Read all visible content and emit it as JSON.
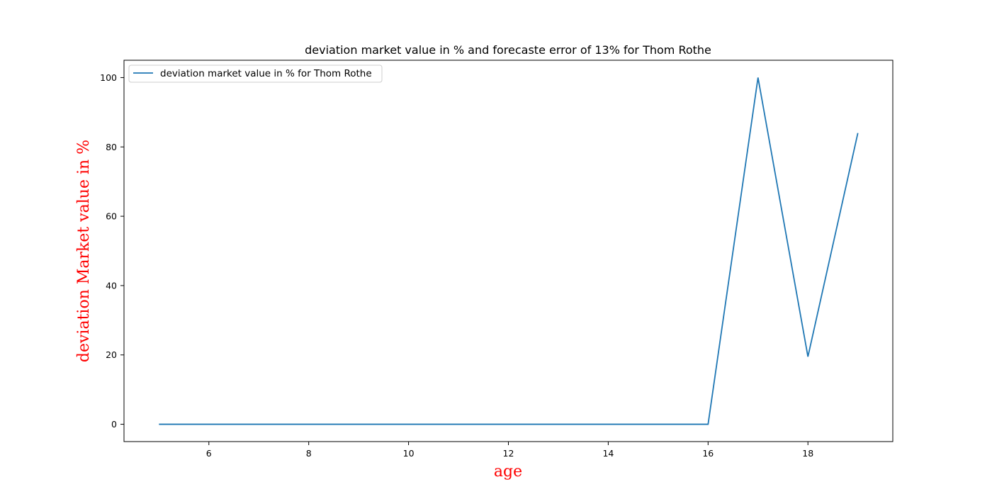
{
  "chart_data": {
    "type": "line",
    "title": "deviation market value in % and forecaste error of 13% for Thom Rothe",
    "xlabel": "age",
    "ylabel": "deviation Market value in %",
    "xlim": [
      4.3,
      19.7
    ],
    "ylim": [
      -5,
      105
    ],
    "xticks": [
      6,
      8,
      10,
      12,
      14,
      16,
      18
    ],
    "yticks": [
      0,
      20,
      40,
      60,
      80,
      100
    ],
    "grid": false,
    "legend_position": "upper-left",
    "series": [
      {
        "name": "deviation market value in % for Thom Rothe",
        "color": "#1f77b4",
        "x": [
          5,
          6,
          7,
          8,
          9,
          10,
          11,
          12,
          13,
          14,
          15,
          16,
          17,
          18,
          19
        ],
        "y": [
          0,
          0,
          0,
          0,
          0,
          0,
          0,
          0,
          0,
          0,
          0,
          0,
          100,
          19.5,
          84
        ]
      }
    ],
    "axis_label_color": "#ff0000"
  }
}
